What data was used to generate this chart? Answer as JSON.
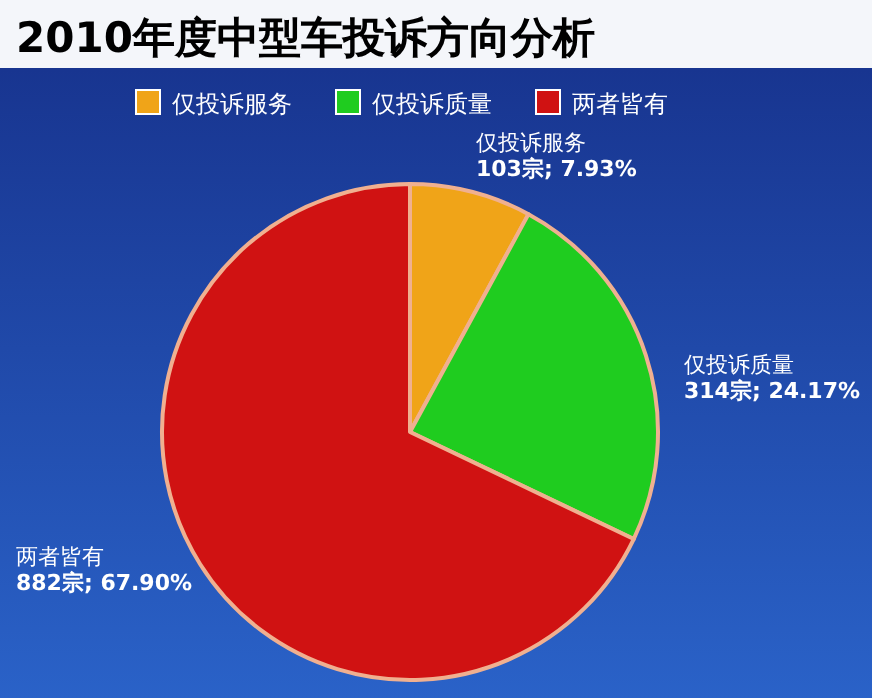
{
  "chart_data": {
    "type": "pie",
    "title": "2010年度中型车投诉方向分析",
    "categories": [
      "仅投诉服务",
      "仅投诉质量",
      "两者皆有"
    ],
    "values": [
      103,
      314,
      882
    ],
    "colors": [
      "#f0a418",
      "#1fcc1f",
      "#d01212"
    ],
    "value_labels": [
      "103宗; 7.93%",
      "314宗; 24.17%",
      "882宗; 67.90%"
    ],
    "legend": "top"
  }
}
